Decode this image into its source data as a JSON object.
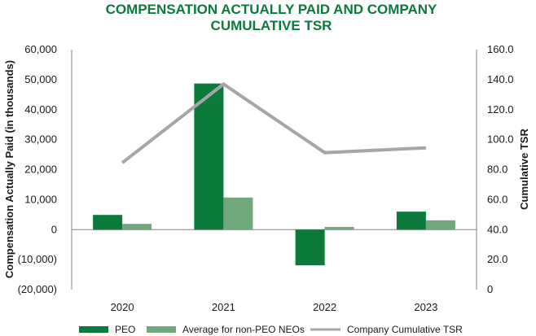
{
  "chart_data": {
    "type": "bar",
    "title_lines": [
      "COMPENSATION ACTUALLY PAID AND COMPANY",
      "CUMULATIVE TSR"
    ],
    "categories": [
      "2020",
      "2021",
      "2022",
      "2023"
    ],
    "series": [
      {
        "name": "PEO",
        "type": "bar",
        "axis": "left",
        "values": [
          4900,
          48700,
          -11900,
          6000
        ],
        "color": "#0b7a3b"
      },
      {
        "name": "Average for non-PEO NEOs",
        "type": "bar",
        "axis": "left",
        "values": [
          1900,
          10700,
          900,
          3100
        ],
        "color": "#6fa87a"
      },
      {
        "name": "Company Cumulative TSR",
        "type": "line",
        "axis": "right",
        "values": [
          84.6,
          137.0,
          91.3,
          94.5
        ],
        "color": "#a6a6a6"
      }
    ],
    "ylabel": "Compensation Actually Paid (in thousands)",
    "y2label": "Cumulative TSR",
    "ylim": [
      -20000,
      60000
    ],
    "y2lim": [
      0,
      160
    ],
    "yticks": [
      "60,000",
      "50,000",
      "40,000",
      "30,000",
      "20,000",
      "10,000",
      "0",
      "(10,000)",
      "(20,000)"
    ],
    "y2ticks": [
      "160.0",
      "140.0",
      "120.0",
      "100.0",
      "80.0",
      "60.0",
      "40.0",
      "20.0",
      "0"
    ],
    "legend": [
      "PEO",
      "Average for non-PEO NEOs",
      "Company Cumulative TSR"
    ],
    "title_color": "#0b7a3b"
  }
}
